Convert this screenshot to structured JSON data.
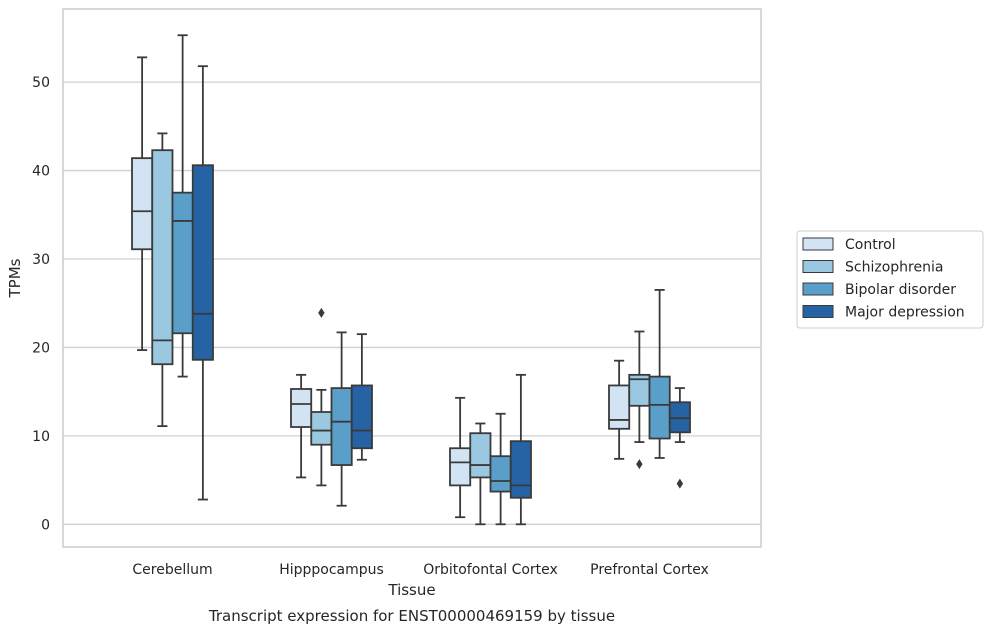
{
  "chart_data": {
    "type": "boxplot",
    "caption": "Transcript expression for ENST00000469159 by tissue",
    "xlabel": "Tissue",
    "ylabel": "TPMs",
    "ylim": [
      -2.6,
      58.5
    ],
    "yticks": [
      0,
      10,
      20,
      30,
      40,
      50
    ],
    "grid": "horizontal",
    "legend_position": "right",
    "categories": [
      "Cerebellum",
      "Hipppocampus",
      "Orbitofontal Cortex",
      "Prefrontal Cortex"
    ],
    "series": [
      {
        "name": "Control",
        "color": "#d2e3f3",
        "boxes": [
          {
            "whisker_low": 19.7,
            "q1": 31.1,
            "median": 35.4,
            "q3": 41.4,
            "whisker_high": 52.8,
            "outliers": []
          },
          {
            "whisker_low": 5.3,
            "q1": 11.0,
            "median": 13.6,
            "q3": 15.3,
            "whisker_high": 16.9,
            "outliers": []
          },
          {
            "whisker_low": 0.8,
            "q1": 4.4,
            "median": 7.0,
            "q3": 8.6,
            "whisker_high": 14.3,
            "outliers": []
          },
          {
            "whisker_low": 7.4,
            "q1": 10.8,
            "median": 11.8,
            "q3": 15.7,
            "whisker_high": 18.5,
            "outliers": []
          }
        ]
      },
      {
        "name": "Schizophrenia",
        "color": "#9ac8e0",
        "boxes": [
          {
            "whisker_low": 11.1,
            "q1": 18.1,
            "median": 20.8,
            "q3": 42.3,
            "whisker_high": 44.2,
            "outliers": []
          },
          {
            "whisker_low": 4.4,
            "q1": 9.0,
            "median": 10.6,
            "q3": 12.7,
            "whisker_high": 15.2,
            "outliers": [
              23.9
            ]
          },
          {
            "whisker_low": 0.0,
            "q1": 5.3,
            "median": 6.7,
            "q3": 10.3,
            "whisker_high": 11.4,
            "outliers": []
          },
          {
            "whisker_low": 9.3,
            "q1": 13.4,
            "median": 16.4,
            "q3": 16.9,
            "whisker_high": 21.8,
            "outliers": [
              6.8
            ]
          }
        ]
      },
      {
        "name": "Bipolar disorder",
        "color": "#5a9fc9",
        "boxes": [
          {
            "whisker_low": 16.7,
            "q1": 21.6,
            "median": 34.3,
            "q3": 37.5,
            "whisker_high": 55.3,
            "outliers": []
          },
          {
            "whisker_low": 2.1,
            "q1": 6.7,
            "median": 11.6,
            "q3": 15.4,
            "whisker_high": 21.7,
            "outliers": []
          },
          {
            "whisker_low": 0.0,
            "q1": 3.7,
            "median": 4.9,
            "q3": 7.7,
            "whisker_high": 12.5,
            "outliers": []
          },
          {
            "whisker_low": 7.5,
            "q1": 9.7,
            "median": 13.5,
            "q3": 16.7,
            "whisker_high": 26.5,
            "outliers": []
          }
        ]
      },
      {
        "name": "Major depression",
        "color": "#2563a4",
        "boxes": [
          {
            "whisker_low": 2.8,
            "q1": 18.6,
            "median": 23.8,
            "q3": 40.6,
            "whisker_high": 51.8,
            "outliers": []
          },
          {
            "whisker_low": 7.3,
            "q1": 8.6,
            "median": 10.6,
            "q3": 15.7,
            "whisker_high": 21.5,
            "outliers": []
          },
          {
            "whisker_low": 0.0,
            "q1": 3.0,
            "median": 4.4,
            "q3": 9.4,
            "whisker_high": 16.9,
            "outliers": []
          },
          {
            "whisker_low": 9.3,
            "q1": 10.4,
            "median": 12.0,
            "q3": 13.8,
            "whisker_high": 15.4,
            "outliers": [
              4.6
            ]
          }
        ]
      }
    ]
  }
}
